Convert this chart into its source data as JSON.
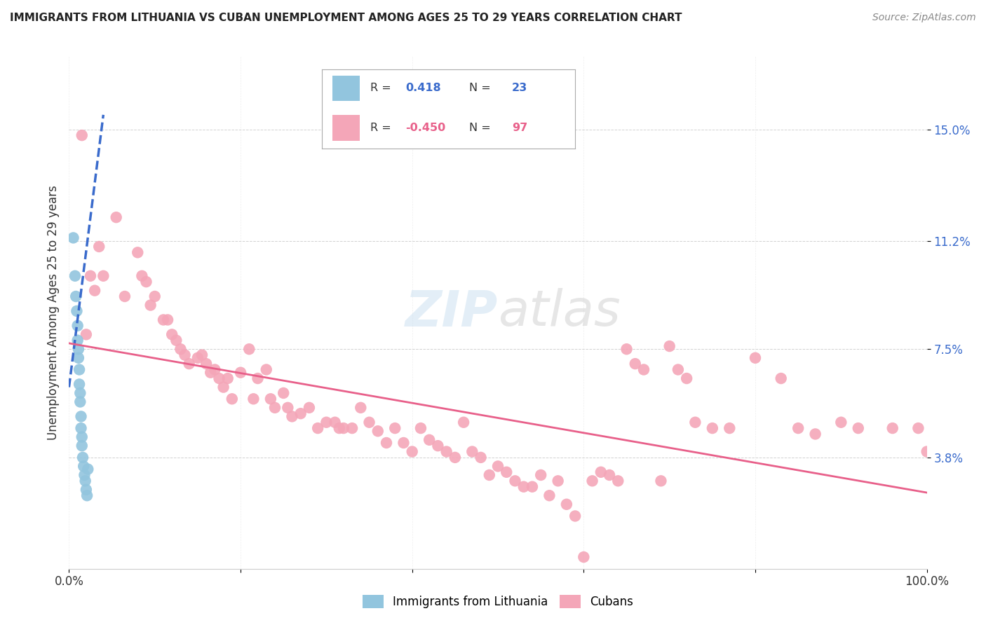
{
  "title": "IMMIGRANTS FROM LITHUANIA VS CUBAN UNEMPLOYMENT AMONG AGES 25 TO 29 YEARS CORRELATION CHART",
  "source": "Source: ZipAtlas.com",
  "ylabel": "Unemployment Among Ages 25 to 29 years",
  "xlim": [
    0.0,
    1.0
  ],
  "ylim": [
    0.0,
    0.175
  ],
  "ytick_values": [
    0.038,
    0.075,
    0.112,
    0.15
  ],
  "ytick_labels": [
    "3.8%",
    "7.5%",
    "11.2%",
    "15.0%"
  ],
  "color_blue": "#92c5de",
  "color_pink": "#f4a6b8",
  "trendline_blue": "#3a6bcc",
  "trendline_pink": "#e8608a",
  "blue_scatter_x": [
    0.005,
    0.007,
    0.008,
    0.009,
    0.01,
    0.01,
    0.011,
    0.011,
    0.012,
    0.012,
    0.013,
    0.013,
    0.014,
    0.014,
    0.015,
    0.015,
    0.016,
    0.017,
    0.018,
    0.019,
    0.02,
    0.021,
    0.022
  ],
  "blue_scatter_y": [
    0.113,
    0.1,
    0.093,
    0.088,
    0.083,
    0.078,
    0.075,
    0.072,
    0.068,
    0.063,
    0.06,
    0.057,
    0.052,
    0.048,
    0.045,
    0.042,
    0.038,
    0.035,
    0.032,
    0.03,
    0.027,
    0.025,
    0.034
  ],
  "pink_scatter_x": [
    0.015,
    0.02,
    0.025,
    0.03,
    0.035,
    0.04,
    0.055,
    0.065,
    0.08,
    0.085,
    0.09,
    0.095,
    0.1,
    0.11,
    0.115,
    0.12,
    0.125,
    0.13,
    0.135,
    0.14,
    0.15,
    0.155,
    0.16,
    0.165,
    0.17,
    0.175,
    0.18,
    0.185,
    0.19,
    0.2,
    0.21,
    0.215,
    0.22,
    0.23,
    0.235,
    0.24,
    0.25,
    0.255,
    0.26,
    0.27,
    0.28,
    0.29,
    0.3,
    0.31,
    0.315,
    0.32,
    0.33,
    0.34,
    0.35,
    0.36,
    0.37,
    0.38,
    0.39,
    0.4,
    0.41,
    0.42,
    0.43,
    0.44,
    0.45,
    0.46,
    0.47,
    0.48,
    0.49,
    0.5,
    0.51,
    0.52,
    0.53,
    0.54,
    0.55,
    0.56,
    0.57,
    0.58,
    0.59,
    0.6,
    0.61,
    0.62,
    0.63,
    0.64,
    0.65,
    0.66,
    0.67,
    0.69,
    0.7,
    0.71,
    0.72,
    0.73,
    0.75,
    0.77,
    0.8,
    0.83,
    0.85,
    0.87,
    0.9,
    0.92,
    0.96,
    0.99,
    1.0
  ],
  "pink_scatter_y": [
    0.148,
    0.08,
    0.1,
    0.095,
    0.11,
    0.1,
    0.12,
    0.093,
    0.108,
    0.1,
    0.098,
    0.09,
    0.093,
    0.085,
    0.085,
    0.08,
    0.078,
    0.075,
    0.073,
    0.07,
    0.072,
    0.073,
    0.07,
    0.067,
    0.068,
    0.065,
    0.062,
    0.065,
    0.058,
    0.067,
    0.075,
    0.058,
    0.065,
    0.068,
    0.058,
    0.055,
    0.06,
    0.055,
    0.052,
    0.053,
    0.055,
    0.048,
    0.05,
    0.05,
    0.048,
    0.048,
    0.048,
    0.055,
    0.05,
    0.047,
    0.043,
    0.048,
    0.043,
    0.04,
    0.048,
    0.044,
    0.042,
    0.04,
    0.038,
    0.05,
    0.04,
    0.038,
    0.032,
    0.035,
    0.033,
    0.03,
    0.028,
    0.028,
    0.032,
    0.025,
    0.03,
    0.022,
    0.018,
    0.004,
    0.03,
    0.033,
    0.032,
    0.03,
    0.075,
    0.07,
    0.068,
    0.03,
    0.076,
    0.068,
    0.065,
    0.05,
    0.048,
    0.048,
    0.072,
    0.065,
    0.048,
    0.046,
    0.05,
    0.048,
    0.048,
    0.048,
    0.04
  ]
}
